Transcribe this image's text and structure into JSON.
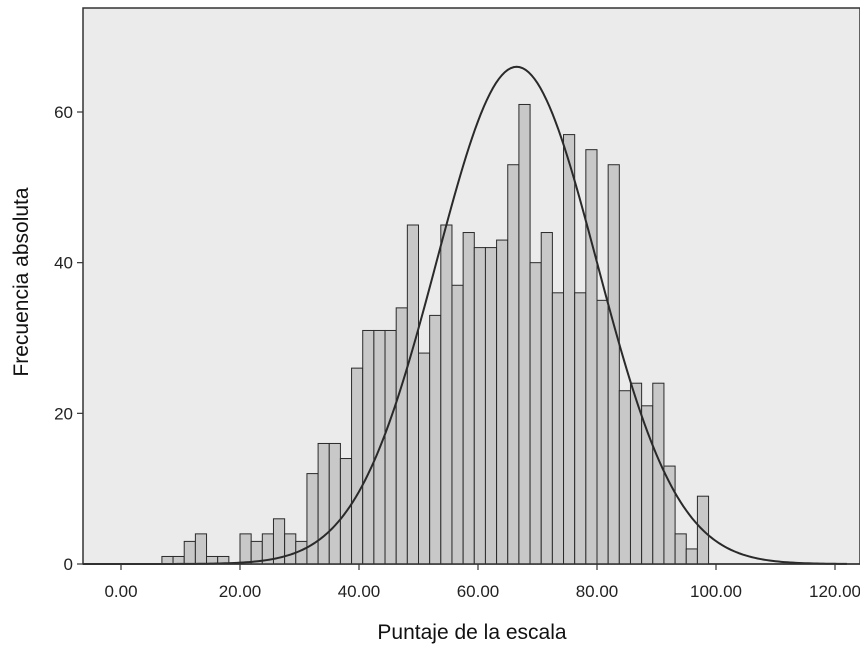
{
  "chart_data": {
    "type": "bar",
    "title": "",
    "xlabel": "Puntaje de la escala",
    "ylabel": "Frecuencia absoluta",
    "xlim": [
      -6.5,
      122
    ],
    "ylim": [
      0,
      74
    ],
    "x_ticks": [
      0,
      20,
      40,
      60,
      80,
      100,
      120
    ],
    "x_tick_labels": [
      "0.00",
      "20.00",
      "40.00",
      "60.00",
      "80.00",
      "100.00",
      "120.00"
    ],
    "y_ticks": [
      0,
      20,
      40,
      60
    ],
    "y_tick_labels": [
      "0",
      "20",
      "40",
      "60"
    ],
    "bin_width": 1.875,
    "bin_starts": [
      6.875,
      8.75,
      10.625,
      12.5,
      14.375,
      16.25,
      18.125,
      20.0,
      21.875,
      23.75,
      25.625,
      27.5,
      29.375,
      31.25,
      33.125,
      35.0,
      36.875,
      38.75,
      40.625,
      42.5,
      44.375,
      46.25,
      48.125,
      50.0,
      51.875,
      53.75,
      55.625,
      57.5,
      59.375,
      61.25,
      63.125,
      65.0,
      66.875,
      68.75,
      70.625,
      72.5,
      74.375,
      76.25,
      78.125,
      80.0,
      81.875,
      83.75,
      85.625,
      87.5,
      89.375,
      91.25,
      93.125,
      95.0,
      96.875,
      98.75
    ],
    "values": [
      1,
      1,
      3,
      4,
      1,
      1,
      0,
      4,
      3,
      4,
      6,
      4,
      3,
      12,
      16,
      16,
      14,
      26,
      31,
      31,
      31,
      34,
      45,
      28,
      33,
      45,
      37,
      44,
      42,
      42,
      43,
      53,
      61,
      40,
      44,
      36,
      57,
      36,
      55,
      35,
      53,
      23,
      24,
      21,
      24,
      13,
      4,
      2,
      9,
      0
    ],
    "normal_curve": {
      "mean": 66.5,
      "peak": 66,
      "sd": 13.5
    },
    "colors": {
      "bar_fill": "#c8c8c8",
      "bar_stroke": "#2a2a2a",
      "plot_background": "#ebebeb",
      "curve": "#2a2a2a"
    },
    "grid": false,
    "legend": "none"
  }
}
